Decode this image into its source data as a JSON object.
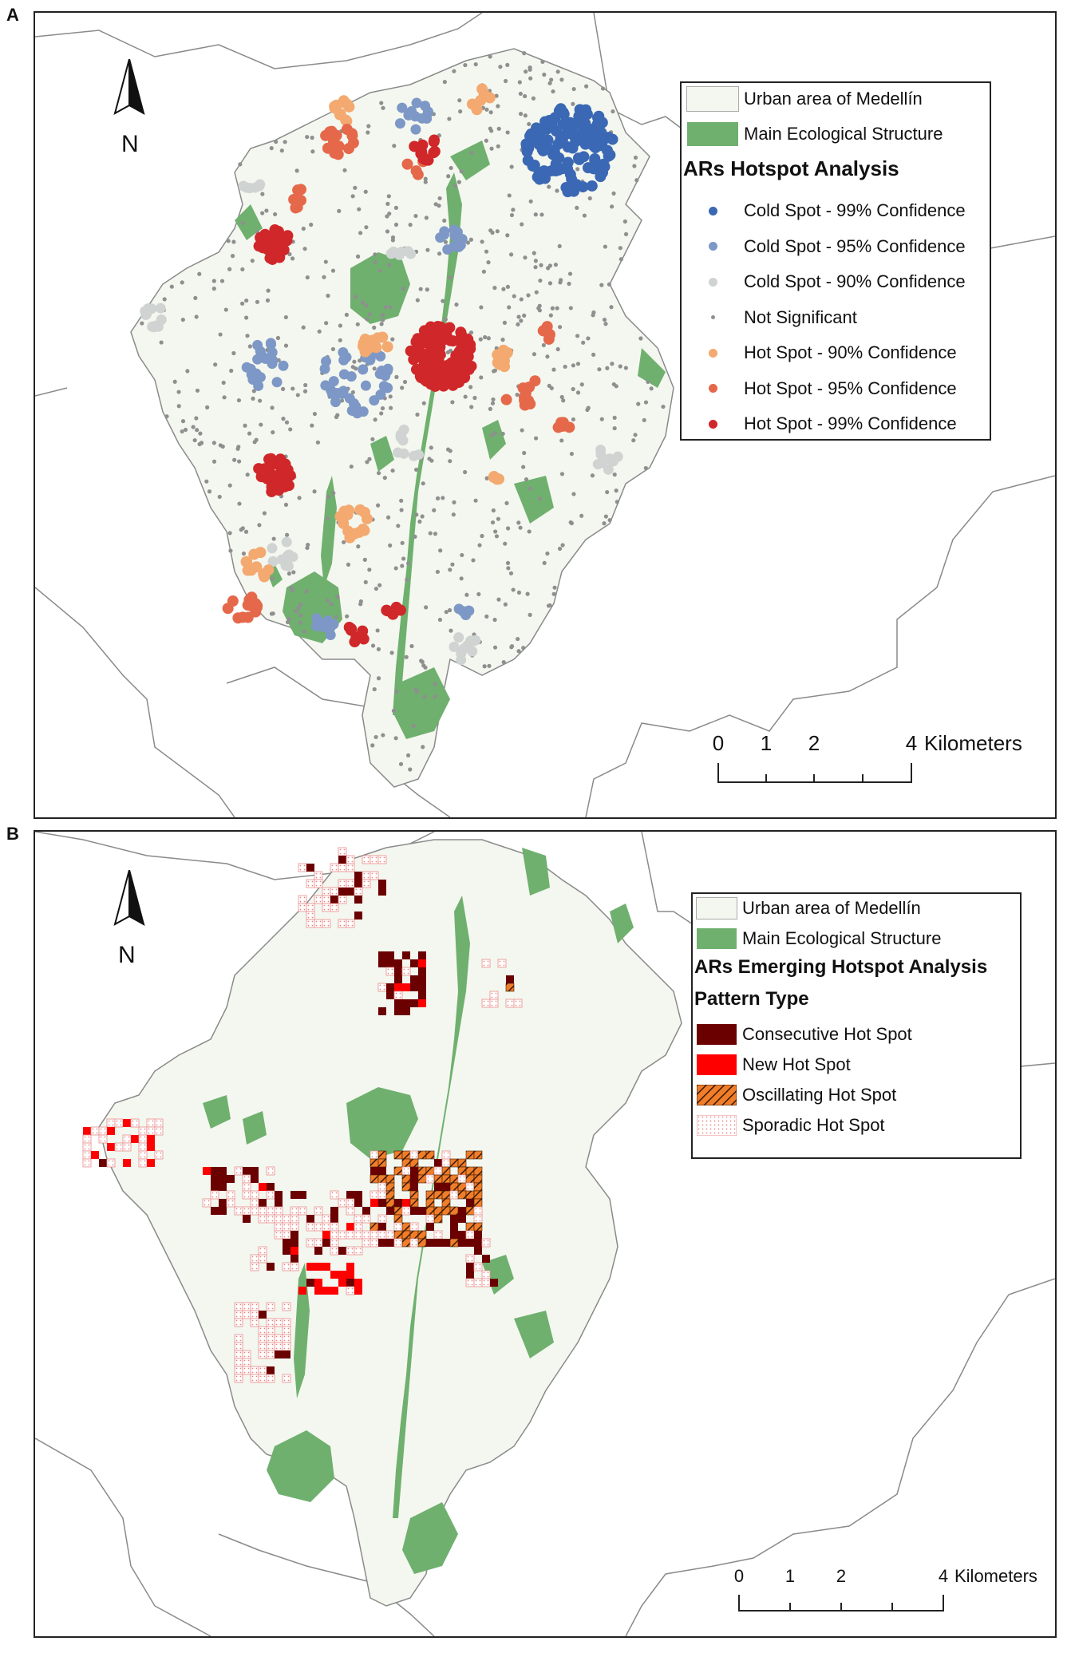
{
  "panels": [
    {
      "letter": "A",
      "north_label": "N",
      "legend": {
        "urban_area": "Urban area of Medellín",
        "ecological": "Main Ecological Structure",
        "title": "ARs Hotspot Analysis",
        "classes": [
          {
            "label": "Cold Spot - 99% Confidence",
            "color": "#3a68b4"
          },
          {
            "label": "Cold Spot - 95% Confidence",
            "color": "#7d98c6"
          },
          {
            "label": "Cold Spot - 90% Confidence",
            "color": "#cfd3d1"
          },
          {
            "label": "Not Significant",
            "color": "#8f8f8f"
          },
          {
            "label": "Hot Spot - 90% Confidence",
            "color": "#f3a96f"
          },
          {
            "label": "Hot Spot - 95% Confidence",
            "color": "#e5684a"
          },
          {
            "label": "Hot Spot - 99% Confidence",
            "color": "#d0272a"
          }
        ]
      },
      "scale": {
        "ticks": [
          "0",
          "1",
          "2",
          "4"
        ],
        "units": "Kilometers"
      }
    },
    {
      "letter": "B",
      "north_label": "N",
      "legend": {
        "urban_area": "Urban area of Medellín",
        "ecological": "Main Ecological Structure",
        "title": "ARs Emerging Hotspot Analysis",
        "subtitle": "Pattern Type",
        "classes": [
          {
            "label": "Consecutive Hot Spot",
            "color": "#6b0000"
          },
          {
            "label": "New Hot Spot",
            "color": "#ff0000"
          },
          {
            "label": "Oscillating Hot Spot",
            "color": "#f07d2a"
          },
          {
            "label": "Sporadic Hot Spot",
            "color": "#e88a8a"
          }
        ]
      },
      "scale": {
        "ticks": [
          "0",
          "1",
          "2",
          "4"
        ],
        "units": "Kilometers"
      }
    }
  ],
  "colors": {
    "urban_fill": "#f4f7ef",
    "ecological_fill": "#6fb06f",
    "boundary": "#8a8a8a"
  }
}
